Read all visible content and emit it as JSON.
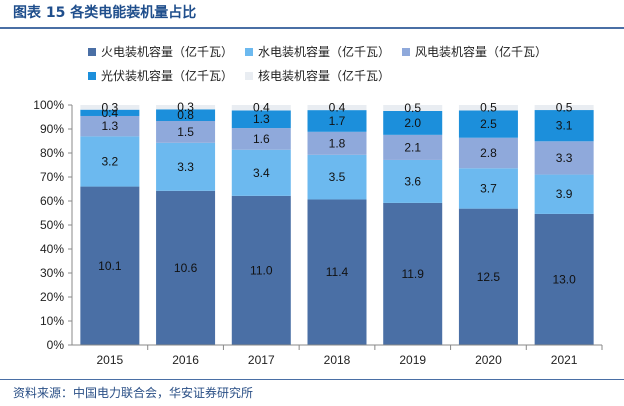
{
  "figure": {
    "title": "图表 15 各类电能装机量占比",
    "source": "资料来源：中国电力联合会，华安证券研究所"
  },
  "chart_data": {
    "type": "bar",
    "stacked": true,
    "percent_stacked": true,
    "categories": [
      "2015",
      "2016",
      "2017",
      "2018",
      "2019",
      "2020",
      "2021"
    ],
    "series": [
      {
        "name": "火电装机容量（亿千瓦）",
        "color": "#4a6fa5",
        "values": [
          10.1,
          10.6,
          11.0,
          11.4,
          11.9,
          12.5,
          13.0
        ]
      },
      {
        "name": "水电装机容量（亿千瓦）",
        "color": "#6cb9ef",
        "values": [
          3.2,
          3.3,
          3.4,
          3.5,
          3.6,
          3.7,
          3.9
        ]
      },
      {
        "name": "风电装机容量（亿千瓦）",
        "color": "#8fa9db",
        "values": [
          1.3,
          1.5,
          1.6,
          1.8,
          2.1,
          2.8,
          3.3
        ]
      },
      {
        "name": "光伏装机容量（亿千瓦）",
        "color": "#1c8fdb",
        "values": [
          0.4,
          0.8,
          1.3,
          1.7,
          2.0,
          2.5,
          3.1
        ]
      },
      {
        "name": "核电装机容量（亿千瓦）",
        "color": "#e9edf2",
        "values": [
          0.3,
          0.3,
          0.4,
          0.4,
          0.5,
          0.5,
          0.5
        ]
      }
    ],
    "y_ticks": [
      "0%",
      "10%",
      "20%",
      "30%",
      "40%",
      "50%",
      "60%",
      "70%",
      "80%",
      "90%",
      "100%"
    ],
    "ylim": [
      0,
      100
    ],
    "title": "",
    "xlabel": "",
    "ylabel": "",
    "legend_position": "top"
  }
}
